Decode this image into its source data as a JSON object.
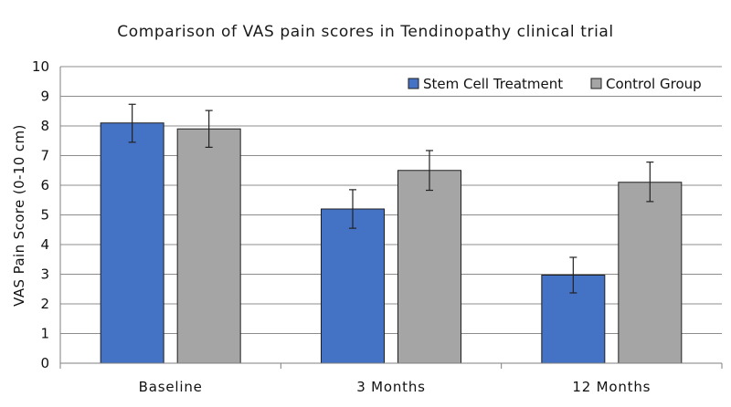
{
  "chart_data": {
    "type": "bar",
    "title": "Comparison of VAS pain scores in Tendinopathy clinical trial",
    "xlabel": "",
    "ylabel": "VAS Pain Score (0-10 cm)",
    "ylim": [
      0,
      10
    ],
    "yticks": [
      0,
      1,
      2,
      3,
      4,
      5,
      6,
      7,
      8,
      9,
      10
    ],
    "grid": true,
    "legend_position": "top-right",
    "categories": [
      "Baseline",
      "3 Months",
      "12 Months"
    ],
    "series": [
      {
        "name": "Stem Cell Treatment",
        "color": "#4472c4",
        "values": [
          8.1,
          5.2,
          2.97
        ],
        "error_low": [
          7.45,
          4.55,
          2.37
        ],
        "error_high": [
          8.73,
          5.85,
          3.57
        ]
      },
      {
        "name": "Control Group",
        "color": "#a5a5a5",
        "values": [
          7.9,
          6.5,
          6.1
        ],
        "error_low": [
          7.28,
          5.83,
          5.45
        ],
        "error_high": [
          8.52,
          7.17,
          6.78
        ]
      }
    ]
  }
}
